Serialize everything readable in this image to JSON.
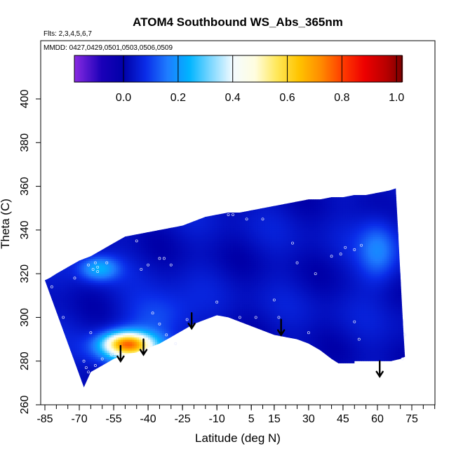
{
  "chart_data": {
    "type": "heatmap",
    "title": "ATOM4 Southbound WS_Abs_365nm",
    "subtitle_flights": "Flts: 2,3,4,5,6,7",
    "subtitle_dates": "MMDD: 0427,0429,0501,0503,0506,0509",
    "xlabel": "Latitude (deg N)",
    "ylabel": "Theta (C)",
    "xlim": [
      -88,
      88
    ],
    "ylim": [
      260,
      405
    ],
    "x_ticks": [
      -85,
      -70,
      -55,
      -40,
      -25,
      -10,
      5,
      15,
      30,
      45,
      60,
      75
    ],
    "x_tick_labels": [
      "-85",
      "-70",
      "-55",
      "-40",
      "-25",
      "-10",
      "5",
      "15",
      "30",
      "45",
      "60",
      "75"
    ],
    "x_minor_step": 5,
    "y_ticks": [
      260,
      280,
      300,
      320,
      340,
      360,
      380,
      400
    ],
    "y_tick_labels": [
      "260",
      "280",
      "300",
      "320",
      "340",
      "360",
      "380",
      "400"
    ],
    "colorbar": {
      "range": [
        -0.18,
        1.02
      ],
      "ticks": [
        0.0,
        0.2,
        0.4,
        0.6,
        0.8,
        1.0
      ],
      "tick_labels": [
        "0.0",
        "0.2",
        "0.4",
        "0.6",
        "0.8",
        "1.0"
      ],
      "stops": [
        {
          "v": -0.18,
          "color": "#8a2be2"
        },
        {
          "v": -0.08,
          "color": "#1a00b8"
        },
        {
          "v": 0.0,
          "color": "#0000a8"
        },
        {
          "v": 0.08,
          "color": "#0a2ce8"
        },
        {
          "v": 0.16,
          "color": "#1e7cff"
        },
        {
          "v": 0.24,
          "color": "#00b4ff"
        },
        {
          "v": 0.32,
          "color": "#7fd8ff"
        },
        {
          "v": 0.4,
          "color": "#f4fbff"
        },
        {
          "v": 0.48,
          "color": "#fffde0"
        },
        {
          "v": 0.56,
          "color": "#ffe85a"
        },
        {
          "v": 0.64,
          "color": "#ffc400"
        },
        {
          "v": 0.72,
          "color": "#ff8c00"
        },
        {
          "v": 0.8,
          "color": "#ff3c00"
        },
        {
          "v": 0.88,
          "color": "#ee0000"
        },
        {
          "v": 0.96,
          "color": "#b80000"
        },
        {
          "v": 1.02,
          "color": "#7a0000"
        }
      ]
    },
    "field_upper_boundary": [
      [
        -85,
        317
      ],
      [
        -83,
        318
      ],
      [
        -80,
        320
      ],
      [
        -75,
        323
      ],
      [
        -70,
        326
      ],
      [
        -65,
        328
      ],
      [
        -60,
        331
      ],
      [
        -55,
        334
      ],
      [
        -50,
        337
      ],
      [
        -45,
        338
      ],
      [
        -40,
        339
      ],
      [
        -35,
        340
      ],
      [
        -30,
        341
      ],
      [
        -25,
        342
      ],
      [
        -20,
        344
      ],
      [
        -15,
        346
      ],
      [
        -10,
        347
      ],
      [
        -5,
        348
      ],
      [
        0,
        348
      ],
      [
        5,
        349
      ],
      [
        10,
        350
      ],
      [
        15,
        351
      ],
      [
        20,
        352
      ],
      [
        25,
        353
      ],
      [
        30,
        354
      ],
      [
        35,
        354
      ],
      [
        40,
        355
      ],
      [
        45,
        355
      ],
      [
        50,
        356
      ],
      [
        55,
        356
      ],
      [
        60,
        357
      ],
      [
        65,
        358
      ],
      [
        68,
        359
      ]
    ],
    "field_lower_boundary": [
      [
        -68,
        268
      ],
      [
        -65,
        275
      ],
      [
        -60,
        278
      ],
      [
        -55,
        281
      ],
      [
        -50,
        283
      ],
      [
        -45,
        284
      ],
      [
        -40,
        286
      ],
      [
        -35,
        288
      ],
      [
        -30,
        291
      ],
      [
        -25,
        294
      ],
      [
        -20,
        297
      ],
      [
        -15,
        299
      ],
      [
        -10,
        301
      ],
      [
        -5,
        300
      ],
      [
        0,
        298
      ],
      [
        5,
        296
      ],
      [
        10,
        294
      ],
      [
        15,
        292
      ],
      [
        20,
        291
      ],
      [
        25,
        290
      ],
      [
        30,
        288
      ],
      [
        35,
        285
      ],
      [
        40,
        281
      ],
      [
        43,
        279
      ],
      [
        50,
        279
      ],
      [
        50,
        280
      ],
      [
        60,
        280
      ],
      [
        66,
        280
      ],
      [
        70,
        281
      ],
      [
        72,
        282
      ]
    ],
    "field_right_edge": [
      [
        68,
        359
      ],
      [
        69,
        340
      ],
      [
        70,
        320
      ],
      [
        71,
        300
      ],
      [
        72,
        282
      ]
    ],
    "hotspots": [
      {
        "lat": -50,
        "theta": 288,
        "value": 0.42,
        "spread_lat": 7,
        "spread_theta": 3.5
      },
      {
        "lat": -48,
        "theta": 285,
        "value": 0.33,
        "spread_lat": 10,
        "spread_theta": 5
      },
      {
        "lat": -62,
        "theta": 322,
        "value": 0.2,
        "spread_lat": 6,
        "spread_theta": 4
      },
      {
        "lat": 60,
        "theta": 330,
        "value": 0.14,
        "spread_lat": 6,
        "spread_theta": 10
      },
      {
        "lat": -35,
        "theta": 300,
        "value": 0.1,
        "spread_lat": 10,
        "spread_theta": 8
      }
    ],
    "background_value": 0.03,
    "sample_points": [
      {
        "lat": -82,
        "theta": 314
      },
      {
        "lat": -72,
        "theta": 318
      },
      {
        "lat": -66,
        "theta": 324
      },
      {
        "lat": -64,
        "theta": 322
      },
      {
        "lat": -63,
        "theta": 325
      },
      {
        "lat": -62,
        "theta": 323
      },
      {
        "lat": -62,
        "theta": 321
      },
      {
        "lat": -58,
        "theta": 325
      },
      {
        "lat": -45,
        "theta": 335
      },
      {
        "lat": -43,
        "theta": 322
      },
      {
        "lat": -40,
        "theta": 324
      },
      {
        "lat": -35,
        "theta": 327
      },
      {
        "lat": -33,
        "theta": 327
      },
      {
        "lat": -30,
        "theta": 324
      },
      {
        "lat": -77,
        "theta": 300
      },
      {
        "lat": -65,
        "theta": 293
      },
      {
        "lat": -38,
        "theta": 302
      },
      {
        "lat": -35,
        "theta": 297
      },
      {
        "lat": -32,
        "theta": 292
      },
      {
        "lat": -28,
        "theta": 288
      },
      {
        "lat": -23,
        "theta": 299
      },
      {
        "lat": -10,
        "theta": 307
      },
      {
        "lat": -5,
        "theta": 347
      },
      {
        "lat": -3,
        "theta": 347
      },
      {
        "lat": 3,
        "theta": 345
      },
      {
        "lat": 10,
        "theta": 345
      },
      {
        "lat": 0,
        "theta": 300
      },
      {
        "lat": 7,
        "theta": 300
      },
      {
        "lat": 15,
        "theta": 308
      },
      {
        "lat": 17,
        "theta": 300
      },
      {
        "lat": 23,
        "theta": 334
      },
      {
        "lat": 25,
        "theta": 325
      },
      {
        "lat": 30,
        "theta": 293
      },
      {
        "lat": 33,
        "theta": 320
      },
      {
        "lat": 40,
        "theta": 328
      },
      {
        "lat": 44,
        "theta": 329
      },
      {
        "lat": 46,
        "theta": 332
      },
      {
        "lat": 50,
        "theta": 331
      },
      {
        "lat": 53,
        "theta": 333
      },
      {
        "lat": 50,
        "theta": 298
      },
      {
        "lat": 52,
        "theta": 290
      },
      {
        "lat": 71,
        "theta": 281
      },
      {
        "lat": 72,
        "theta": 292
      },
      {
        "lat": -68,
        "theta": 280
      },
      {
        "lat": -67,
        "theta": 277
      },
      {
        "lat": -66,
        "theta": 275
      },
      {
        "lat": -63,
        "theta": 278
      },
      {
        "lat": -60,
        "theta": 281
      },
      {
        "lat": -56,
        "theta": 283
      },
      {
        "lat": -52,
        "theta": 284
      }
    ],
    "arrows": [
      {
        "lat": -52,
        "theta_top": 287
      },
      {
        "lat": -42,
        "theta_top": 290
      },
      {
        "lat": -21,
        "theta_top": 302
      },
      {
        "lat": 18,
        "theta_top": 299
      },
      {
        "lat": 61,
        "theta_top": 280
      }
    ]
  }
}
